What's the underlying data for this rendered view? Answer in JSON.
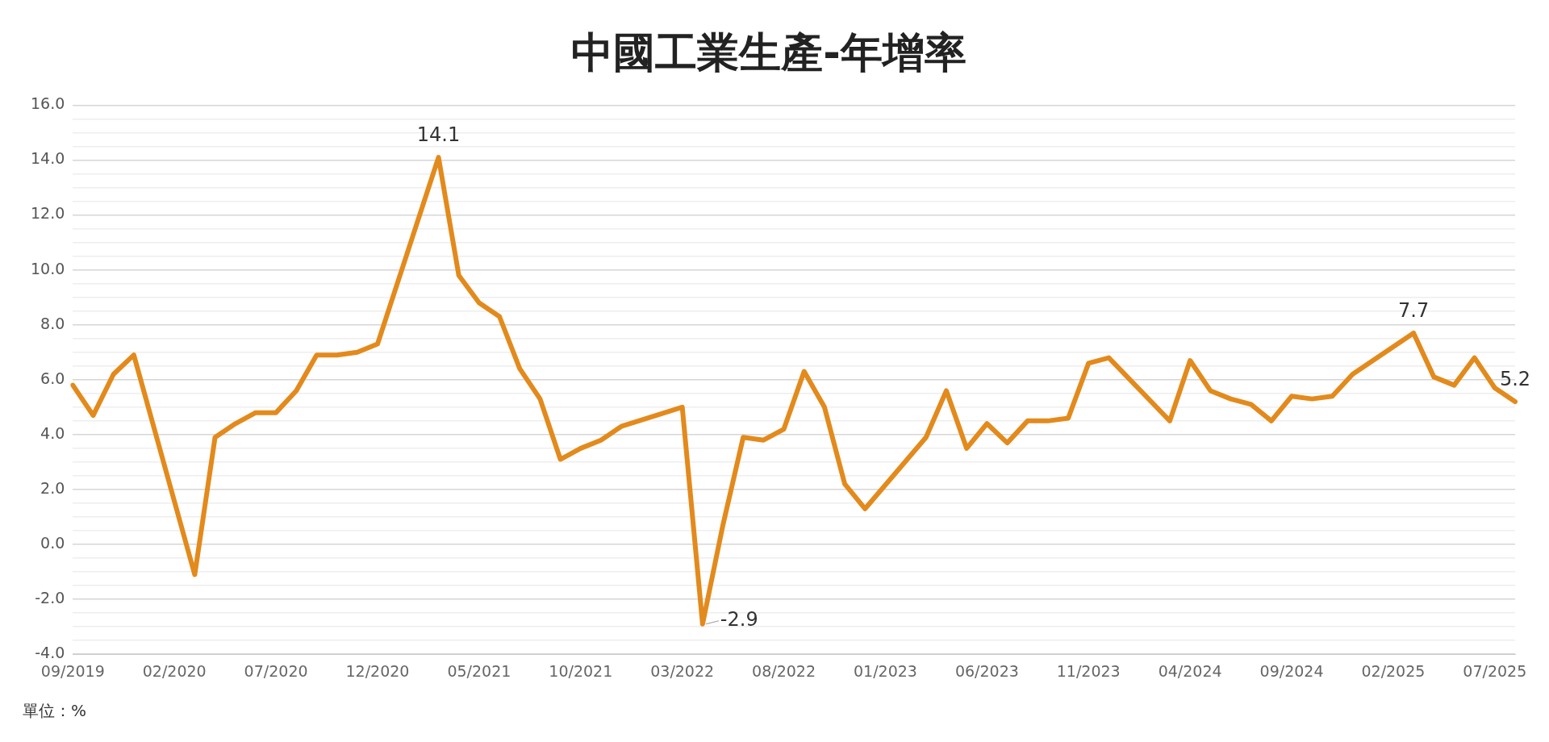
{
  "chart_data": {
    "type": "line",
    "title": "中國工業生產-年增率",
    "categories": [
      "09/2019",
      null,
      null,
      null,
      null,
      "02/2020",
      null,
      null,
      null,
      null,
      "07/2020",
      null,
      null,
      null,
      null,
      "12/2020",
      null,
      null,
      null,
      null,
      "05/2021",
      null,
      null,
      null,
      null,
      "10/2021",
      null,
      null,
      null,
      null,
      "03/2022",
      null,
      null,
      null,
      null,
      "08/2022",
      null,
      null,
      null,
      null,
      "01/2023",
      null,
      null,
      null,
      null,
      "06/2023",
      null,
      null,
      null,
      null,
      "11/2023",
      null,
      null,
      null,
      null,
      "04/2024",
      null,
      null,
      null,
      null,
      "09/2024",
      null,
      null,
      null,
      null,
      "02/2025",
      null,
      null,
      null,
      null,
      "07/2025",
      null
    ],
    "series": [
      {
        "color": "#e38a1c",
        "values": [
          5.8,
          4.7,
          6.2,
          6.9,
          null,
          null,
          -1.1,
          3.9,
          4.4,
          4.8,
          4.8,
          5.6,
          6.9,
          6.9,
          7.0,
          7.3,
          null,
          null,
          14.1,
          9.8,
          8.8,
          8.3,
          6.4,
          5.3,
          3.1,
          3.5,
          3.8,
          4.3,
          null,
          null,
          5.0,
          -2.9,
          0.7,
          3.9,
          3.8,
          4.2,
          6.3,
          5.0,
          2.2,
          1.3,
          null,
          null,
          3.9,
          5.6,
          3.5,
          4.4,
          3.7,
          4.5,
          4.5,
          4.6,
          6.6,
          6.8,
          null,
          null,
          4.5,
          6.7,
          5.6,
          5.3,
          5.1,
          4.5,
          5.4,
          5.3,
          5.4,
          6.2,
          null,
          null,
          7.7,
          6.1,
          5.8,
          6.8,
          5.7,
          5.2
        ],
        "value_labels": [
          null,
          null,
          null,
          null,
          null,
          null,
          null,
          null,
          null,
          null,
          null,
          null,
          null,
          null,
          null,
          null,
          null,
          null,
          "14.1",
          null,
          null,
          null,
          null,
          null,
          null,
          null,
          null,
          null,
          null,
          null,
          null,
          "-2.9",
          null,
          null,
          null,
          null,
          null,
          null,
          null,
          null,
          null,
          null,
          null,
          null,
          null,
          null,
          null,
          null,
          null,
          null,
          null,
          null,
          null,
          null,
          null,
          null,
          null,
          null,
          null,
          null,
          null,
          null,
          null,
          null,
          null,
          null,
          "7.7",
          null,
          null,
          null,
          null,
          "5.2"
        ]
      }
    ],
    "ylim": [
      -4,
      16
    ],
    "yticks": [
      {
        "value": -4,
        "label": "-4.0"
      },
      {
        "value": -3.5,
        "label": null
      },
      {
        "value": -3,
        "label": null
      },
      {
        "value": -2.5,
        "label": null
      },
      {
        "value": -2,
        "label": "-2.0"
      },
      {
        "value": -1.5,
        "label": null
      },
      {
        "value": -1,
        "label": null
      },
      {
        "value": -0.5,
        "label": null
      },
      {
        "value": 0,
        "label": "0.0"
      },
      {
        "value": 0.5,
        "label": null
      },
      {
        "value": 1,
        "label": null
      },
      {
        "value": 1.5,
        "label": null
      },
      {
        "value": 2,
        "label": "2.0"
      },
      {
        "value": 2.5,
        "label": null
      },
      {
        "value": 3,
        "label": null
      },
      {
        "value": 3.5,
        "label": null
      },
      {
        "value": 4,
        "label": "4.0"
      },
      {
        "value": 4.5,
        "label": null
      },
      {
        "value": 5,
        "label": null
      },
      {
        "value": 5.5,
        "label": null
      },
      {
        "value": 6,
        "label": "6.0"
      },
      {
        "value": 6.5,
        "label": null
      },
      {
        "value": 7,
        "label": null
      },
      {
        "value": 7.5,
        "label": null
      },
      {
        "value": 8,
        "label": "8.0"
      },
      {
        "value": 8.5,
        "label": null
      },
      {
        "value": 9,
        "label": null
      },
      {
        "value": 9.5,
        "label": null
      },
      {
        "value": 10,
        "label": "10.0"
      },
      {
        "value": 10.5,
        "label": null
      },
      {
        "value": 11,
        "label": null
      },
      {
        "value": 11.5,
        "label": null
      },
      {
        "value": 12,
        "label": "12.0"
      },
      {
        "value": 12.5,
        "label": null
      },
      {
        "value": 13,
        "label": null
      },
      {
        "value": 13.5,
        "label": null
      },
      {
        "value": 14,
        "label": "14.0"
      },
      {
        "value": 14.5,
        "label": null
      },
      {
        "value": 15,
        "label": null
      },
      {
        "value": 15.5,
        "label": null
      },
      {
        "value": 16,
        "label": "16.0"
      }
    ],
    "grid": "y",
    "legend": false,
    "annotations": [
      "單位：%"
    ]
  }
}
